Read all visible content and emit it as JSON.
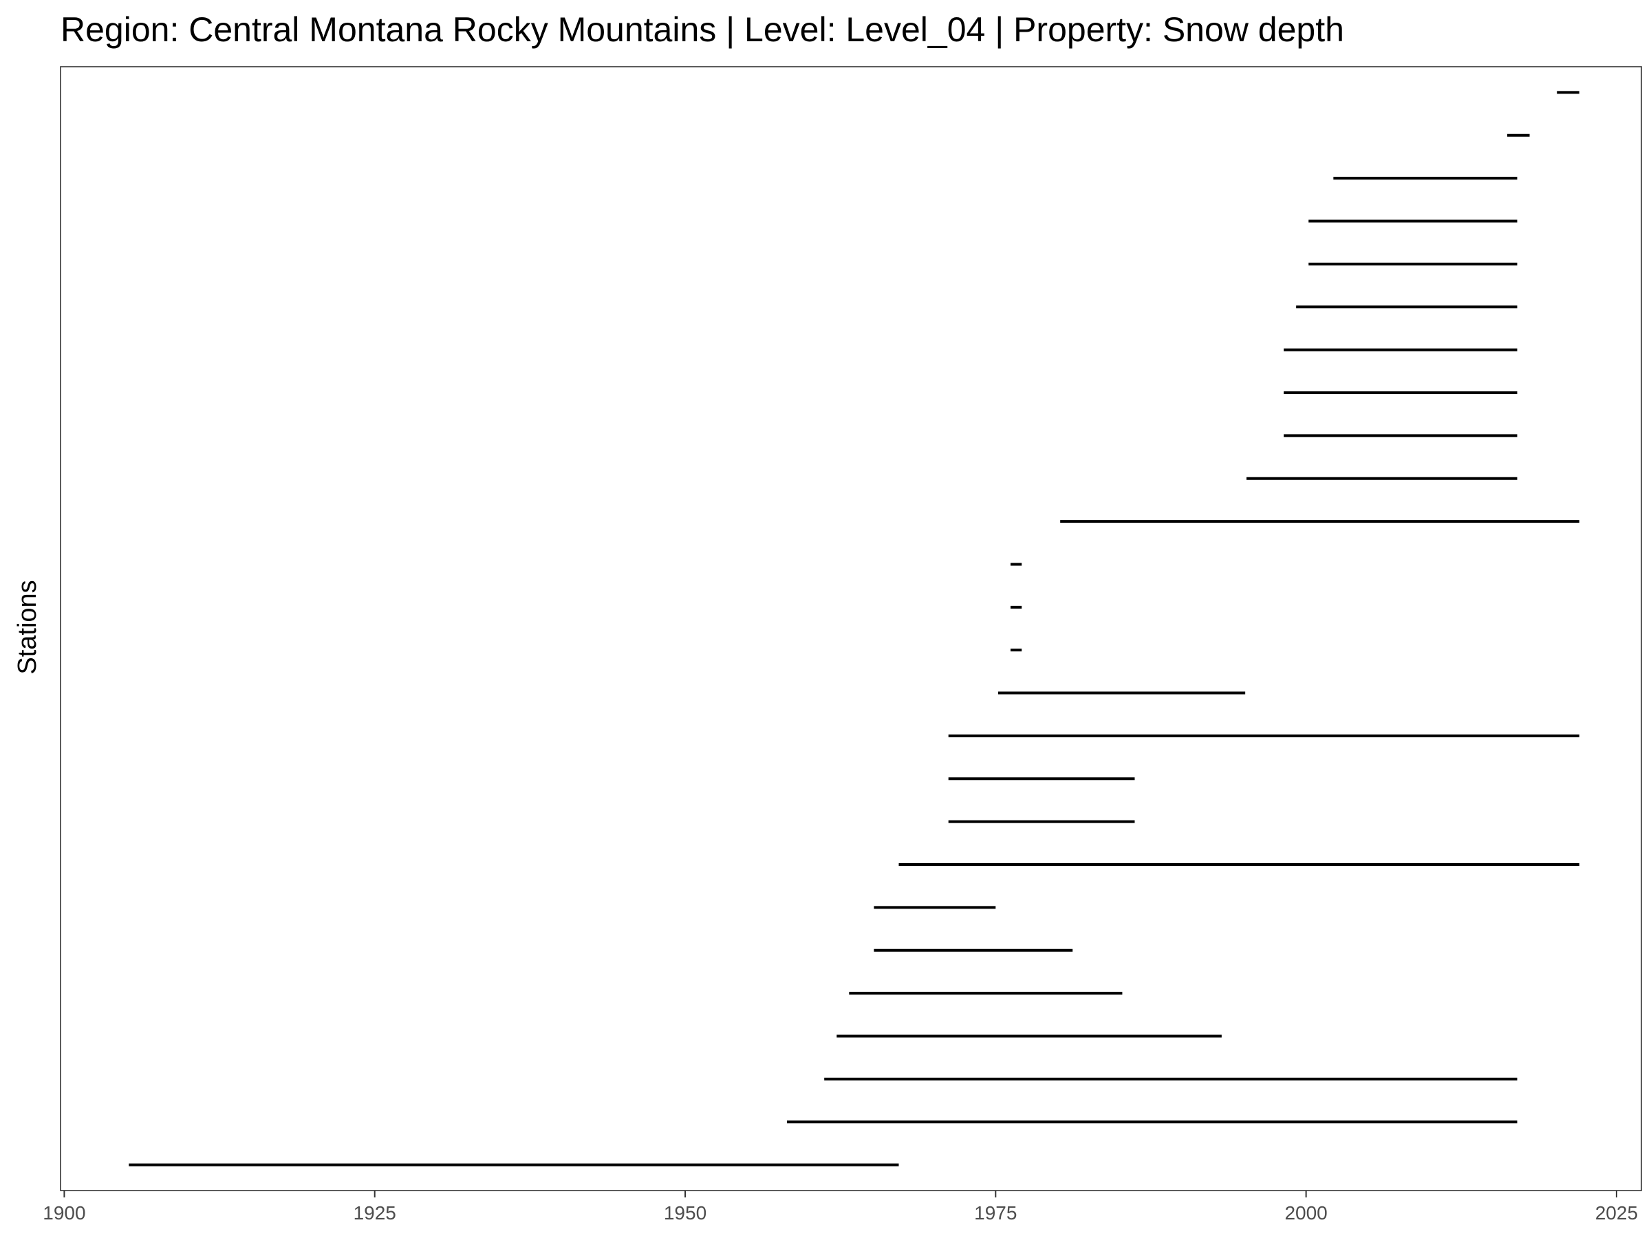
{
  "chart_data": {
    "type": "range",
    "title": "Region: Central Montana Rocky Mountains | Level: Level_04 | Property: Snow depth",
    "xlabel": "",
    "ylabel": "Stations",
    "xlim": [
      1899.7,
      2027.0
    ],
    "x_ticks": [
      1900,
      1925,
      1950,
      1975,
      2000,
      2025
    ],
    "x_tick_labels": [
      "1900",
      "1925",
      "1950",
      "1975",
      "2000",
      "2025"
    ],
    "grid": false,
    "legend": "none",
    "line_color": "#000000",
    "segments": [
      {
        "start": 1905.2,
        "end": 1967.2
      },
      {
        "start": 1958.2,
        "end": 2017.0
      },
      {
        "start": 1961.2,
        "end": 2017.0
      },
      {
        "start": 1962.2,
        "end": 1993.2
      },
      {
        "start": 1963.2,
        "end": 1985.2
      },
      {
        "start": 1965.2,
        "end": 1981.2
      },
      {
        "start": 1965.2,
        "end": 1975.0
      },
      {
        "start": 1967.2,
        "end": 2022.0
      },
      {
        "start": 1971.2,
        "end": 1986.2
      },
      {
        "start": 1971.2,
        "end": 1986.2
      },
      {
        "start": 1971.2,
        "end": 2022.0
      },
      {
        "start": 1975.2,
        "end": 1995.1
      },
      {
        "start": 1976.2,
        "end": 1977.1
      },
      {
        "start": 1976.2,
        "end": 1977.1
      },
      {
        "start": 1976.2,
        "end": 1977.1
      },
      {
        "start": 1980.2,
        "end": 2022.0
      },
      {
        "start": 1995.2,
        "end": 2017.0
      },
      {
        "start": 1998.2,
        "end": 2017.0
      },
      {
        "start": 1998.2,
        "end": 2017.0
      },
      {
        "start": 1998.2,
        "end": 2017.0
      },
      {
        "start": 1999.2,
        "end": 2017.0
      },
      {
        "start": 2000.2,
        "end": 2017.0
      },
      {
        "start": 2000.2,
        "end": 2017.0
      },
      {
        "start": 2002.2,
        "end": 2017.0
      },
      {
        "start": 2016.2,
        "end": 2018.0
      },
      {
        "start": 2020.2,
        "end": 2022.0
      }
    ]
  }
}
